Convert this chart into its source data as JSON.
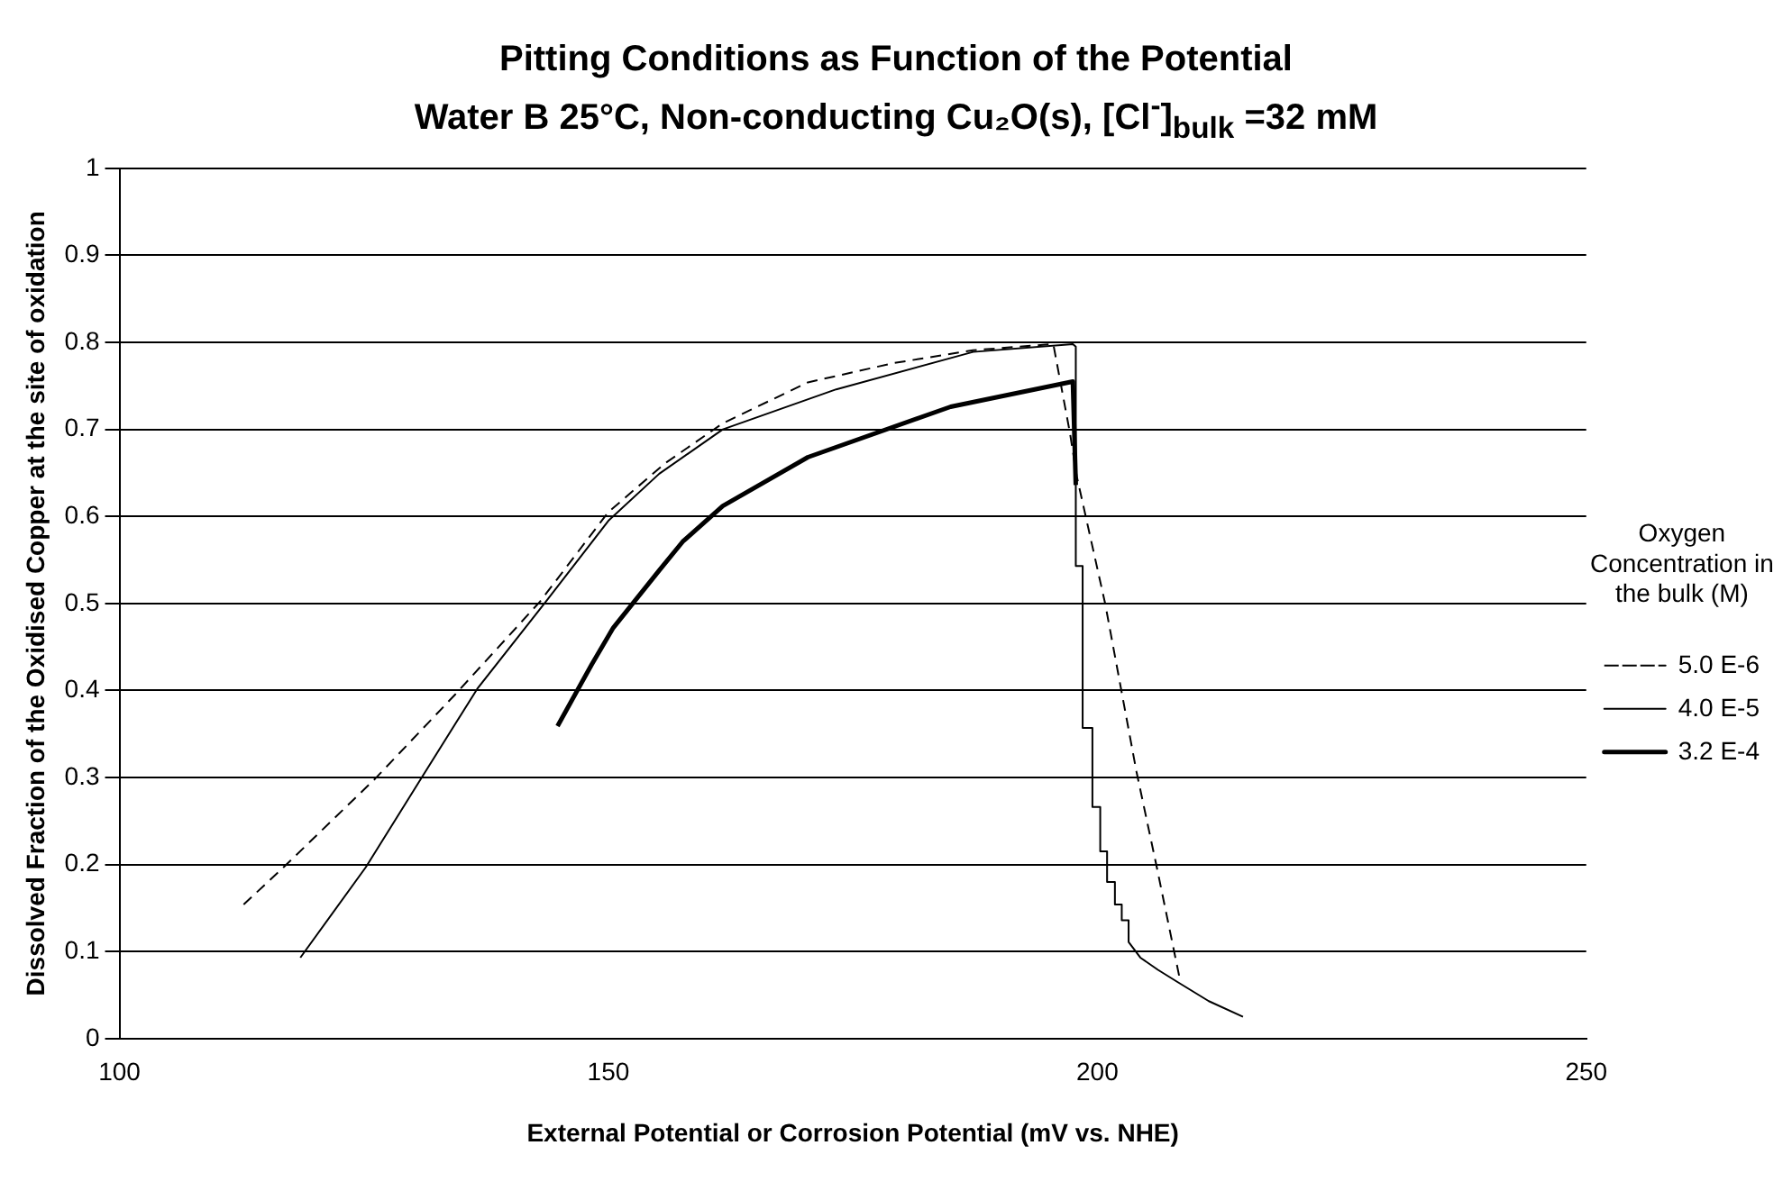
{
  "chart_data": {
    "type": "line",
    "title": "Pitting Conditions as Function of the Potential",
    "subtitle": "Water B 25°C, Non-conducting Cu₂O(s), [Cl$^{-}$]$_{bulk}$ =32 mM",
    "xlabel": "External Potential or Corrosion Potential (mV vs. NHE)",
    "ylabel": "Dissolved Fraction of the Oxidised Copper at the site of oxidation",
    "legend_title": "Oxygen Concentration in the bulk (M)",
    "legend": "right",
    "grid": "y",
    "marker": "none",
    "xlim": [
      100,
      250
    ],
    "xticks": [
      100,
      150,
      200,
      250
    ],
    "ylim": [
      0,
      1
    ],
    "yticks": [
      0,
      0.1,
      0.2,
      0.3,
      0.4,
      0.5,
      0.6,
      0.7,
      0.8,
      0.9,
      1
    ],
    "series": [
      {
        "name": "5.0 E-6",
        "color": "#000000",
        "line_style": "dashed",
        "x": [
          112.7,
          116.8,
          126.1,
          134.3,
          143,
          150,
          155.8,
          161.7,
          170.4,
          179.1,
          187.3,
          195.5,
          197.2,
          197.9,
          200.8,
          204,
          206.1,
          208.5
        ],
        "values": [
          0.154,
          0.197,
          0.298,
          0.395,
          0.502,
          0.605,
          0.661,
          0.707,
          0.754,
          0.776,
          0.791,
          0.798,
          0.696,
          0.646,
          0.5,
          0.307,
          0.196,
          0.065
        ]
      },
      {
        "name": "4.0 E-5",
        "color": "#000000",
        "line_style": "solid",
        "x": [
          118.5,
          125.2,
          130.8,
          136.6,
          143.6,
          150,
          155.2,
          161.7,
          173.3,
          187.3,
          197.5,
          197.8,
          197.8,
          198.5,
          198.5,
          199.5,
          199.5,
          200.3,
          200.3,
          201,
          201,
          201.8,
          201.8,
          202.5,
          202.5,
          203.2,
          203.2,
          204.4,
          206.2,
          208.2,
          211.4,
          214.9
        ],
        "values": [
          0.093,
          0.197,
          0.298,
          0.402,
          0.502,
          0.595,
          0.649,
          0.7,
          0.746,
          0.789,
          0.798,
          0.795,
          0.543,
          0.543,
          0.357,
          0.357,
          0.266,
          0.266,
          0.215,
          0.215,
          0.18,
          0.18,
          0.154,
          0.154,
          0.136,
          0.136,
          0.111,
          0.093,
          0.079,
          0.065,
          0.043,
          0.025
        ]
      },
      {
        "name": "3.2 E-4",
        "color": "#000000",
        "line_style": "solid",
        "x": [
          144.8,
          148.3,
          150.5,
          155.2,
          157.6,
          161.7,
          170.4,
          185,
          197.5,
          197.8
        ],
        "values": [
          0.359,
          0.43,
          0.472,
          0.538,
          0.571,
          0.612,
          0.668,
          0.726,
          0.755,
          0.636
        ]
      }
    ]
  }
}
